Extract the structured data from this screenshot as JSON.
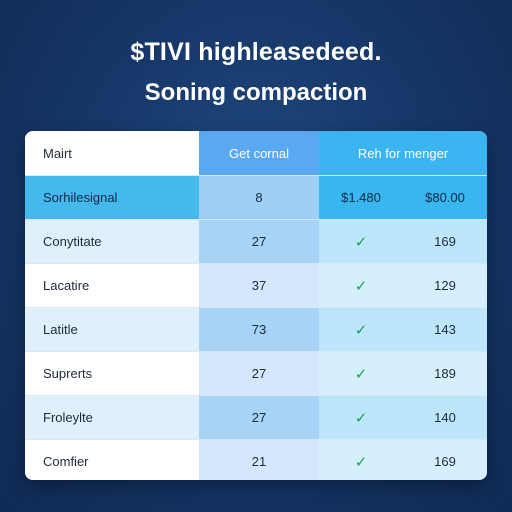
{
  "heading": {
    "line1": "$TIVI highleasedeed.",
    "line2": "Soning compaction"
  },
  "table": {
    "header": {
      "col1": "Mairt",
      "col2": "Get cornal",
      "col3": "Reh for menger"
    },
    "highlight_row": {
      "label": "Sorhilesignal",
      "value": "8",
      "price1": "$1.480",
      "price2": "$80.00"
    },
    "rows": [
      {
        "label": "Conytitate",
        "value": "27",
        "check": "✓",
        "amount": "169"
      },
      {
        "label": "Lacatire",
        "value": "37",
        "check": "✓",
        "amount": "129"
      },
      {
        "label": "Latitle",
        "value": "73",
        "check": "✓",
        "amount": "143"
      },
      {
        "label": "Suprerts",
        "value": "27",
        "check": "✓",
        "amount": "189"
      },
      {
        "label": "Froleylte",
        "value": "27",
        "check": "✓",
        "amount": "140"
      },
      {
        "label": "Comfier",
        "value": "21",
        "check": "✓",
        "amount": "169"
      }
    ]
  },
  "colors": {
    "background": "#17386a",
    "header_accent": "#3bb4f2",
    "check": "#19a05a"
  }
}
